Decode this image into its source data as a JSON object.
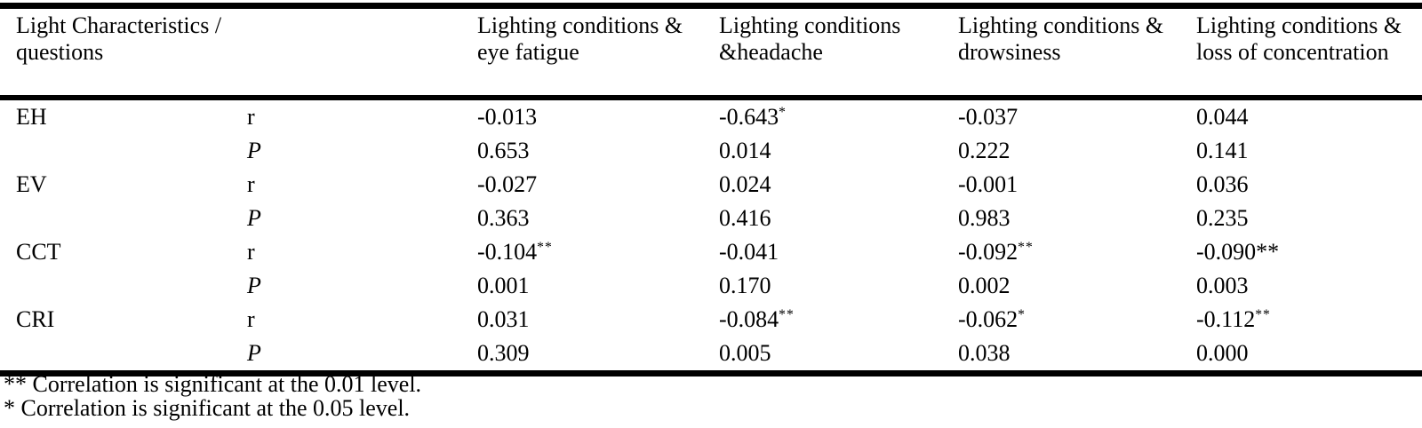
{
  "page": {
    "background_color": "#ffffff",
    "text_color": "#000000",
    "rule_color": "#000000"
  },
  "table": {
    "columns": [
      {
        "id": "light-characteristics",
        "lines": [
          "Light Characteristics /",
          "questions"
        ]
      },
      {
        "id": "statistic",
        "lines": []
      },
      {
        "id": "eye-fatigue",
        "lines": [
          "Lighting conditions &",
          "eye fatigue"
        ]
      },
      {
        "id": "headache",
        "lines": [
          "Lighting conditions",
          "&headache"
        ]
      },
      {
        "id": "drowsiness",
        "lines": [
          "Lighting conditions &",
          "drowsiness"
        ]
      },
      {
        "id": "loss-of-concentration",
        "lines": [
          "Lighting conditions &",
          "loss of concentration"
        ]
      }
    ],
    "rows": [
      {
        "characteristic": "EH",
        "stat": "r",
        "italic_stat": false,
        "values": [
          {
            "text": "-0.013"
          },
          {
            "text": "-0.643",
            "sup": "*"
          },
          {
            "text": "-0.037"
          },
          {
            "text": "0.044"
          }
        ]
      },
      {
        "characteristic": "",
        "stat": "P",
        "italic_stat": true,
        "values": [
          {
            "text": "0.653"
          },
          {
            "text": "0.014"
          },
          {
            "text": "0.222"
          },
          {
            "text": "0.141"
          }
        ]
      },
      {
        "characteristic": "EV",
        "stat": "r",
        "italic_stat": false,
        "values": [
          {
            "text": "-0.027"
          },
          {
            "text": "0.024"
          },
          {
            "text": "-0.001"
          },
          {
            "text": "0.036"
          }
        ]
      },
      {
        "characteristic": "",
        "stat": "P",
        "italic_stat": true,
        "values": [
          {
            "text": "0.363"
          },
          {
            "text": "0.416"
          },
          {
            "text": "0.983"
          },
          {
            "text": "0.235"
          }
        ]
      },
      {
        "characteristic": "CCT",
        "stat": "r",
        "italic_stat": false,
        "values": [
          {
            "text": "-0.104",
            "sup": "**"
          },
          {
            "text": "-0.041"
          },
          {
            "text": "-0.092",
            "sup": "**"
          },
          {
            "text": "-0.090**"
          }
        ]
      },
      {
        "characteristic": "",
        "stat": "P",
        "italic_stat": true,
        "values": [
          {
            "text": "0.001"
          },
          {
            "text": "0.170"
          },
          {
            "text": "0.002"
          },
          {
            "text": "0.003"
          }
        ]
      },
      {
        "characteristic": "CRI",
        "stat": "r",
        "italic_stat": false,
        "values": [
          {
            "text": "0.031"
          },
          {
            "text": "-0.084",
            "sup": "**"
          },
          {
            "text": "-0.062",
            "sup": "*"
          },
          {
            "text": "-0.112",
            "sup": "**"
          }
        ]
      },
      {
        "characteristic": "",
        "stat": "P",
        "italic_stat": true,
        "values": [
          {
            "text": "0.309"
          },
          {
            "text": "0.005"
          },
          {
            "text": "0.038"
          },
          {
            "text": "0.000"
          }
        ]
      }
    ],
    "footnotes": [
      "** Correlation is significant at the 0.01 level.",
      "* Correlation is significant at the 0.05 level."
    ]
  },
  "chart_data": {
    "type": "table",
    "title": "",
    "row_groups": [
      "EH",
      "EV",
      "CCT",
      "CRI"
    ],
    "statistics": [
      "r",
      "P"
    ],
    "categories": [
      "Lighting conditions & eye fatigue",
      "Lighting conditions &headache",
      "Lighting conditions & drowsiness",
      "Lighting conditions & loss of concentration"
    ],
    "series": [
      {
        "name": "EH r",
        "values": [
          -0.013,
          -0.643,
          -0.037,
          0.044
        ]
      },
      {
        "name": "EH P",
        "values": [
          0.653,
          0.014,
          0.222,
          0.141
        ]
      },
      {
        "name": "EV r",
        "values": [
          -0.027,
          0.024,
          -0.001,
          0.036
        ]
      },
      {
        "name": "EV P",
        "values": [
          0.363,
          0.416,
          0.983,
          0.235
        ]
      },
      {
        "name": "CCT r",
        "values": [
          -0.104,
          -0.041,
          -0.092,
          -0.09
        ]
      },
      {
        "name": "CCT P",
        "values": [
          0.001,
          0.17,
          0.002,
          0.003
        ]
      },
      {
        "name": "CRI r",
        "values": [
          0.031,
          -0.084,
          -0.062,
          -0.112
        ]
      },
      {
        "name": "CRI P",
        "values": [
          0.309,
          0.005,
          0.038,
          0.0
        ]
      }
    ]
  }
}
